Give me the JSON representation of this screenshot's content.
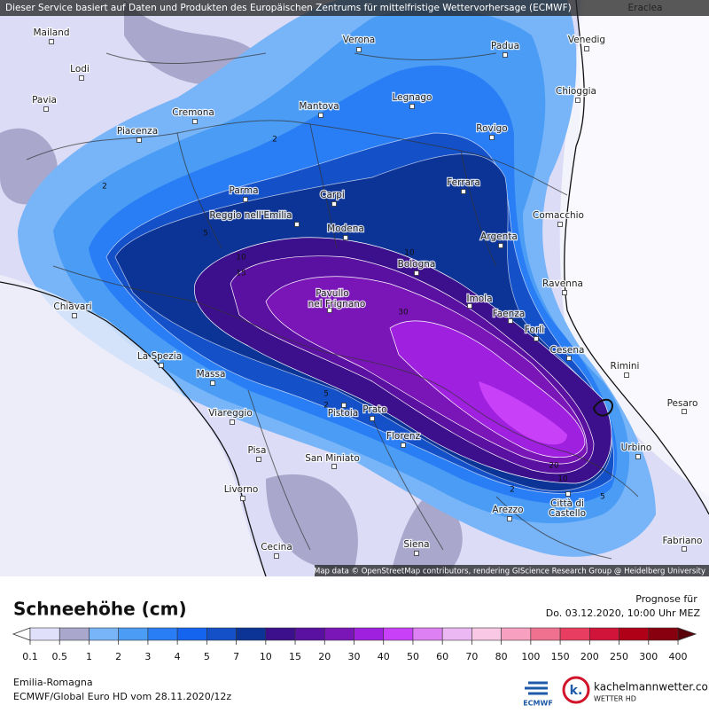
{
  "header": {
    "disclaimer": "Dieser Service basiert auf Daten und Produkten des Europäischen Zentrums für mittelfristige Wettervorhersage (ECMWF)"
  },
  "map": {
    "attribution": "Map data © OpenStreetMap contributors, rendering GIScience Research Group @ Heidelberg University",
    "cities": [
      "Eraclea",
      "Mailand",
      "Verona",
      "Padua",
      "Venedig",
      "Lodi",
      "Pavia",
      "Cremona",
      "Mantova",
      "Legnago",
      "Chioggia",
      "Rovigo",
      "Piacenza",
      "Parma",
      "Carpi",
      "Ferrara",
      "Reggio nell'Emilia",
      "Comacchio",
      "Modena",
      "Argenta",
      "Bologna",
      "Chiavari",
      "Pavullo",
      "nel Frignano",
      "Ravenna",
      "Imola",
      "Faenza",
      "Forlì",
      "Cesena",
      "Rimini",
      "La Spezia",
      "Massa",
      "Pesaro",
      "Pistoia",
      "Prato",
      "Viareggio",
      "Florenz",
      "Urbino",
      "Pisa",
      "San Miniato",
      "Livorno",
      "Città di",
      "Castello",
      "Arezzo",
      "Siena",
      "Cecina",
      "Fabriano"
    ],
    "contour_labels": [
      "2",
      "2",
      "5",
      "10",
      "10",
      "15",
      "30",
      "5",
      "2",
      "20",
      "10",
      "2",
      "5"
    ]
  },
  "legend": {
    "title": "Schneehöhe (cm)",
    "labels": [
      0.1,
      0.5,
      1,
      2,
      3,
      4,
      5,
      7,
      10,
      15,
      20,
      30,
      40,
      50,
      60,
      70,
      80,
      100,
      150,
      200,
      250,
      300,
      400
    ],
    "colors": [
      "#e0e0fa",
      "#a9a8cc",
      "#78b4f8",
      "#4a9cf5",
      "#2a7ef5",
      "#1464f0",
      "#1450c8",
      "#0c3496",
      "#3c0f8c",
      "#5a10a0",
      "#7a16b8",
      "#a020e0",
      "#c840f8",
      "#dc80f4",
      "#ecb8f4",
      "#f8c8e4",
      "#f8a0c0",
      "#f07090",
      "#e83c60",
      "#d0143a",
      "#b00018",
      "#880010"
    ],
    "below_color": "#ffffff",
    "above_color": "#5a0008"
  },
  "forecast": {
    "label": "Prognose für",
    "time": "Do. 03.12.2020, 10:00 Uhr MEZ"
  },
  "footer": {
    "region": "Emilia-Romagna",
    "model": "ECMWF/Global Euro HD vom  28.11.2020/12z",
    "ecmwf_logo": "ECMWF",
    "brand_icon": "k.",
    "brand": "kachelmannwetter.com",
    "brand_sub": "WETTER HD"
  }
}
